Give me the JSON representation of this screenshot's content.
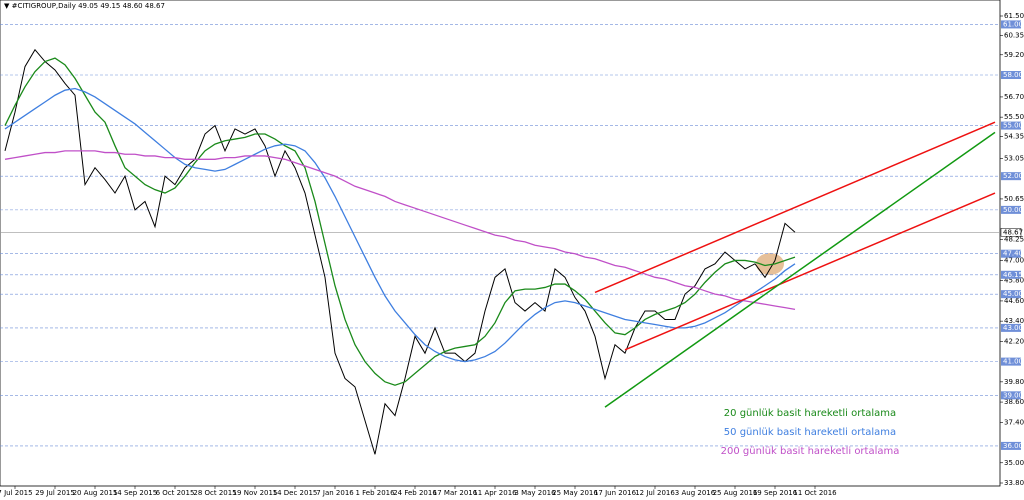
{
  "chart_data": {
    "type": "line",
    "title": "▼ #CITIGROUP,Daily  49.05 49.15 48.60 48.67",
    "categories": [
      null,
      "7 Jul 2015",
      null,
      null,
      null,
      "29 Jul 2015",
      null,
      null,
      null,
      "20 Aug 2015",
      null,
      null,
      null,
      "14 Sep 2015",
      null,
      null,
      null,
      "6 Oct 2015",
      null,
      null,
      null,
      "28 Oct 2015",
      null,
      null,
      null,
      "19 Nov 2015",
      null,
      null,
      null,
      "14 Dec 2015",
      null,
      null,
      null,
      "7 Jan 2016",
      null,
      null,
      null,
      "1 Feb 2016",
      null,
      null,
      null,
      "24 Feb 2016",
      null,
      null,
      null,
      "17 Mar 2016",
      null,
      null,
      null,
      "11 Apr 2016",
      null,
      null,
      null,
      "3 May 2016",
      null,
      null,
      null,
      "25 May 2016",
      null,
      null,
      null,
      "17 Jun 2016",
      null,
      null,
      null,
      "12 Jul 2016",
      null,
      null,
      null,
      "3 Aug 2016",
      null,
      null,
      null,
      "25 Aug 2016",
      null,
      null,
      null,
      "19 Sep 2016",
      null,
      null,
      null,
      "11 Oct 2016",
      null,
      null,
      null,
      null,
      null,
      null,
      null,
      null,
      null,
      null,
      null,
      null,
      null,
      null,
      null,
      null,
      null,
      null
    ],
    "series": [
      {
        "color": "#000000",
        "values": [
          53.5,
          55.8,
          58.5,
          59.5,
          58.8,
          58.3,
          57.5,
          56.8,
          51.5,
          52.5,
          51.8,
          51.0,
          52.0,
          50.0,
          50.5,
          49.0,
          52.0,
          51.5,
          52.5,
          53.0,
          54.5,
          55.0,
          53.5,
          54.8,
          54.5,
          54.8,
          53.8,
          52.0,
          53.5,
          52.5,
          51.0,
          48.5,
          46.0,
          41.5,
          40.0,
          39.5,
          37.5,
          35.5,
          38.5,
          37.8,
          40.0,
          42.5,
          41.5,
          43.0,
          41.5,
          41.5,
          41.0,
          41.5,
          44.0,
          46.0,
          46.5,
          44.5,
          44.0,
          44.5,
          44.0,
          46.5,
          46.0,
          44.8,
          44.0,
          42.5,
          40.0,
          42.0,
          41.5,
          43.0,
          44.0,
          44.0,
          43.5,
          43.5,
          45.0,
          45.5,
          46.5,
          46.8,
          47.5,
          47.0,
          46.5,
          46.8,
          46.0,
          47.0,
          49.2,
          48.67,
          null,
          null,
          null,
          null,
          null,
          null,
          null,
          null,
          null,
          null,
          null,
          null,
          null,
          null,
          null,
          null,
          null,
          null,
          null,
          null
        ]
      },
      {
        "name": "20 günlük basit hareketli ortalama",
        "color": "#1a8a1a",
        "values": [
          55.0,
          56.2,
          57.3,
          58.2,
          58.8,
          59.0,
          58.6,
          57.8,
          56.8,
          55.8,
          55.2,
          53.8,
          52.5,
          52.0,
          51.5,
          51.2,
          51.0,
          51.3,
          52.0,
          52.8,
          53.5,
          53.9,
          54.1,
          54.2,
          54.3,
          54.5,
          54.5,
          54.2,
          53.8,
          53.5,
          52.5,
          50.5,
          48.0,
          45.5,
          43.5,
          42.0,
          41.0,
          40.3,
          39.8,
          39.6,
          39.8,
          40.3,
          40.8,
          41.3,
          41.6,
          41.8,
          41.9,
          42.0,
          42.5,
          43.3,
          44.5,
          45.2,
          45.3,
          45.3,
          45.4,
          45.6,
          45.6,
          45.2,
          44.7,
          44.0,
          43.3,
          42.7,
          42.6,
          43.0,
          43.5,
          43.8,
          44.0,
          44.2,
          44.5,
          45.0,
          45.7,
          46.3,
          46.8,
          47.0,
          47.0,
          46.9,
          46.7,
          46.8,
          47.0,
          47.2,
          null,
          null,
          null,
          null,
          null,
          null,
          null,
          null,
          null,
          null,
          null,
          null,
          null,
          null,
          null,
          null,
          null,
          null,
          null,
          null
        ]
      },
      {
        "name": "50 günlük basit hareketli ortalama",
        "color": "#3f7fe0",
        "values": [
          54.8,
          55.2,
          55.6,
          56.0,
          56.4,
          56.8,
          57.1,
          57.2,
          57.0,
          56.7,
          56.3,
          55.9,
          55.5,
          55.1,
          54.6,
          54.1,
          53.6,
          53.1,
          52.7,
          52.5,
          52.4,
          52.3,
          52.4,
          52.7,
          53.0,
          53.3,
          53.6,
          53.8,
          53.9,
          53.8,
          53.5,
          52.8,
          51.9,
          50.8,
          49.6,
          48.4,
          47.2,
          46.0,
          44.9,
          44.0,
          43.3,
          42.6,
          42.0,
          41.6,
          41.3,
          41.1,
          41.0,
          41.1,
          41.3,
          41.6,
          42.1,
          42.7,
          43.3,
          43.8,
          44.2,
          44.5,
          44.6,
          44.5,
          44.3,
          44.1,
          43.9,
          43.7,
          43.5,
          43.4,
          43.3,
          43.2,
          43.1,
          43.0,
          43.0,
          43.1,
          43.3,
          43.6,
          43.9,
          44.3,
          44.7,
          45.1,
          45.5,
          45.9,
          46.4,
          46.8,
          null,
          null,
          null,
          null,
          null,
          null,
          null,
          null,
          null,
          null,
          null,
          null,
          null,
          null,
          null,
          null,
          null,
          null,
          null,
          null
        ]
      },
      {
        "name": "200 günlük basit hareketli ortalama",
        "color": "#c050c8",
        "values": [
          53.0,
          53.1,
          53.2,
          53.3,
          53.4,
          53.4,
          53.5,
          53.5,
          53.5,
          53.5,
          53.4,
          53.4,
          53.3,
          53.3,
          53.2,
          53.2,
          53.1,
          53.1,
          53.0,
          53.0,
          53.0,
          53.0,
          53.1,
          53.1,
          53.2,
          53.2,
          53.2,
          53.1,
          53.0,
          52.8,
          52.6,
          52.4,
          52.2,
          52.0,
          51.7,
          51.4,
          51.2,
          51.0,
          50.8,
          50.5,
          50.3,
          50.1,
          49.9,
          49.7,
          49.5,
          49.3,
          49.1,
          48.9,
          48.7,
          48.5,
          48.4,
          48.2,
          48.1,
          47.9,
          47.8,
          47.7,
          47.5,
          47.4,
          47.2,
          47.1,
          46.9,
          46.7,
          46.6,
          46.4,
          46.2,
          46.0,
          45.9,
          45.7,
          45.5,
          45.4,
          45.2,
          45.0,
          44.9,
          44.7,
          44.6,
          44.5,
          44.4,
          44.3,
          44.2,
          44.1,
          null,
          null,
          null,
          null,
          null,
          null,
          null,
          null,
          null,
          null,
          null,
          null,
          null,
          null,
          null,
          null,
          null,
          null,
          null,
          null
        ]
      }
    ],
    "trendlines": [
      {
        "color": "#ee1111",
        "index": [
          59,
          99
        ],
        "values": [
          45.1,
          55.2
        ]
      },
      {
        "color": "#ee1111",
        "index": [
          62,
          99
        ],
        "values": [
          41.7,
          51.0
        ]
      },
      {
        "color": "#119911",
        "index": [
          60,
          99
        ],
        "values": [
          38.3,
          54.6
        ]
      }
    ],
    "ylim": [
      33.8,
      61.5
    ],
    "yticks": [
      {
        "value": 61.5,
        "label": "61.50"
      },
      {
        "value": 60.35,
        "label": "60.35"
      },
      {
        "value": 59.2,
        "label": "59.20"
      },
      {
        "value": 56.7,
        "label": "56.70"
      },
      {
        "value": 55.5,
        "label": "55.50"
      },
      {
        "value": 54.35,
        "label": "54.35"
      },
      {
        "value": 53.05,
        "label": "53.05"
      },
      {
        "value": 50.65,
        "label": "50.65"
      },
      {
        "value": 48.25,
        "label": "48.25"
      },
      {
        "value": 47,
        "label": "47.00"
      },
      {
        "value": 45.8,
        "label": "45.80"
      },
      {
        "value": 44.6,
        "label": "44.60"
      },
      {
        "value": 43.4,
        "label": "43.40"
      },
      {
        "value": 42.2,
        "label": "42.20"
      },
      {
        "value": 39.8,
        "label": "39.80"
      },
      {
        "value": 38.6,
        "label": "38.60"
      },
      {
        "value": 37.4,
        "label": "37.40"
      },
      {
        "value": 35,
        "label": "35.00"
      },
      {
        "value": 33.8,
        "label": "33.80"
      }
    ],
    "levels": [
      {
        "value": 61,
        "label": "61.00"
      },
      {
        "value": 58,
        "label": "58.00"
      },
      {
        "value": 55,
        "label": "55.00"
      },
      {
        "value": 52,
        "label": "52.00"
      },
      {
        "value": 50,
        "label": "50.00"
      },
      {
        "value": 47.4,
        "label": "47.40"
      },
      {
        "value": 46.15,
        "label": "46.15"
      },
      {
        "value": 45,
        "label": "45.00"
      },
      {
        "value": 43,
        "label": "43.00"
      },
      {
        "value": 41,
        "label": "41.00"
      },
      {
        "value": 39,
        "label": "39.00"
      },
      {
        "value": 36,
        "label": "36.00"
      }
    ],
    "level_color": "#6f8fd8",
    "current": {
      "value": 48.67,
      "label": "48.67"
    }
  }
}
